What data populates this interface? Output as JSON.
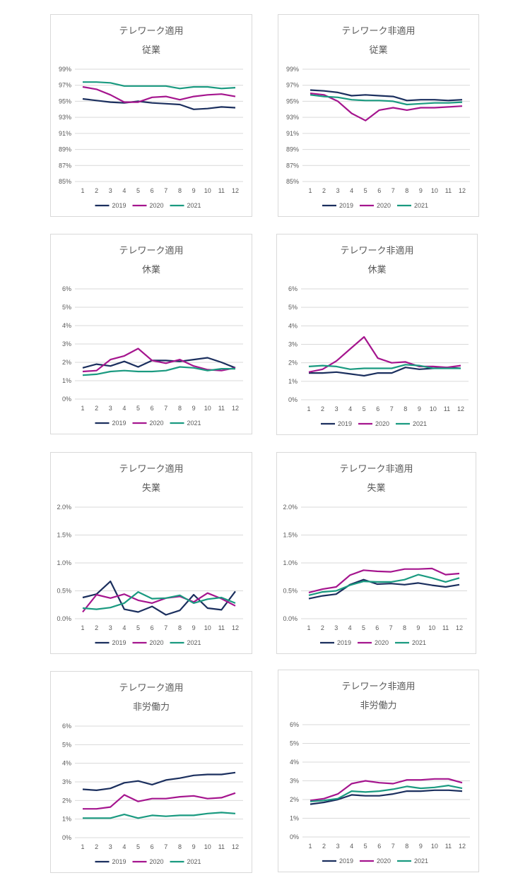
{
  "colors": {
    "2019": "#1b2f5e",
    "2020": "#a5158e",
    "2021": "#1a9a80",
    "grid": "#d9d9d9",
    "text": "#595959"
  },
  "legend": [
    "2019",
    "2020",
    "2021"
  ],
  "chart_data": [
    {
      "type": "line",
      "title": "テレワーク適用",
      "subtitle": "従業",
      "x": [
        1,
        2,
        3,
        4,
        5,
        6,
        7,
        8,
        9,
        10,
        11,
        12
      ],
      "yticks": [
        "85%",
        "87%",
        "89%",
        "91%",
        "93%",
        "95%",
        "97%",
        "99%"
      ],
      "ylim": [
        85,
        99
      ],
      "series": [
        {
          "name": "2019",
          "values": [
            95.3,
            95.1,
            94.9,
            94.8,
            95.0,
            94.8,
            94.7,
            94.6,
            94.0,
            94.1,
            94.3,
            94.2
          ]
        },
        {
          "name": "2020",
          "values": [
            96.8,
            96.5,
            95.8,
            94.9,
            94.9,
            95.5,
            95.6,
            95.2,
            95.6,
            95.8,
            95.9,
            95.6
          ]
        },
        {
          "name": "2021",
          "values": [
            97.4,
            97.4,
            97.3,
            96.9,
            96.9,
            96.9,
            96.9,
            96.6,
            96.8,
            96.8,
            96.6,
            96.7
          ]
        }
      ]
    },
    {
      "type": "line",
      "title": "テレワーク非適用",
      "subtitle": "従業",
      "x": [
        1,
        2,
        3,
        4,
        5,
        6,
        7,
        8,
        9,
        10,
        11,
        12
      ],
      "yticks": [
        "85%",
        "87%",
        "89%",
        "91%",
        "93%",
        "95%",
        "97%",
        "99%"
      ],
      "ylim": [
        85,
        99
      ],
      "series": [
        {
          "name": "2019",
          "values": [
            96.4,
            96.3,
            96.1,
            95.7,
            95.8,
            95.7,
            95.6,
            95.1,
            95.2,
            95.2,
            95.1,
            95.2
          ]
        },
        {
          "name": "2020",
          "values": [
            96.0,
            95.8,
            95.0,
            93.5,
            92.6,
            93.9,
            94.2,
            93.9,
            94.2,
            94.2,
            94.3,
            94.4
          ]
        },
        {
          "name": "2021",
          "values": [
            95.8,
            95.6,
            95.5,
            95.2,
            95.1,
            95.1,
            95.0,
            94.6,
            94.7,
            94.8,
            94.8,
            94.9
          ]
        }
      ]
    },
    {
      "type": "line",
      "title": "テレワーク適用",
      "subtitle": "休業",
      "x": [
        1,
        2,
        3,
        4,
        5,
        6,
        7,
        8,
        9,
        10,
        11,
        12
      ],
      "yticks": [
        "0%",
        "1%",
        "2%",
        "3%",
        "4%",
        "5%",
        "6%"
      ],
      "ylim": [
        0,
        6
      ],
      "series": [
        {
          "name": "2019",
          "values": [
            1.7,
            1.9,
            1.8,
            2.05,
            1.75,
            2.1,
            2.1,
            2.05,
            2.15,
            2.25,
            2.0,
            1.7
          ]
        },
        {
          "name": "2020",
          "values": [
            1.5,
            1.55,
            2.15,
            2.35,
            2.75,
            2.1,
            1.95,
            2.15,
            1.8,
            1.6,
            1.55,
            1.7
          ]
        },
        {
          "name": "2021",
          "values": [
            1.3,
            1.35,
            1.5,
            1.55,
            1.5,
            1.5,
            1.55,
            1.75,
            1.7,
            1.55,
            1.65,
            1.65
          ]
        }
      ]
    },
    {
      "type": "line",
      "title": "テレワーク非適用",
      "subtitle": "休業",
      "x": [
        1,
        2,
        3,
        4,
        5,
        6,
        7,
        8,
        9,
        10,
        11,
        12
      ],
      "yticks": [
        "0%",
        "1%",
        "2%",
        "3%",
        "4%",
        "5%",
        "6%"
      ],
      "ylim": [
        0,
        6
      ],
      "series": [
        {
          "name": "2019",
          "values": [
            1.45,
            1.45,
            1.5,
            1.4,
            1.3,
            1.45,
            1.45,
            1.75,
            1.65,
            1.7,
            1.75,
            1.7
          ]
        },
        {
          "name": "2020",
          "values": [
            1.5,
            1.65,
            2.1,
            2.75,
            3.4,
            2.25,
            2.0,
            2.05,
            1.8,
            1.8,
            1.75,
            1.85
          ]
        },
        {
          "name": "2021",
          "values": [
            1.8,
            1.85,
            1.8,
            1.65,
            1.7,
            1.7,
            1.7,
            1.9,
            1.85,
            1.7,
            1.7,
            1.7
          ]
        }
      ]
    },
    {
      "type": "line",
      "title": "テレワーク適用",
      "subtitle": "失業",
      "x": [
        1,
        2,
        3,
        4,
        5,
        6,
        7,
        8,
        9,
        10,
        11,
        12
      ],
      "yticks": [
        "0.0%",
        "0.5%",
        "1.0%",
        "1.5%",
        "2.0%"
      ],
      "ylim": [
        0,
        2.0
      ],
      "series": [
        {
          "name": "2019",
          "values": [
            0.38,
            0.44,
            0.67,
            0.17,
            0.12,
            0.22,
            0.07,
            0.15,
            0.43,
            0.19,
            0.16,
            0.49
          ]
        },
        {
          "name": "2020",
          "values": [
            0.12,
            0.43,
            0.37,
            0.44,
            0.33,
            0.28,
            0.37,
            0.4,
            0.3,
            0.46,
            0.36,
            0.23
          ]
        },
        {
          "name": "2021",
          "values": [
            0.19,
            0.17,
            0.2,
            0.28,
            0.48,
            0.36,
            0.37,
            0.42,
            0.28,
            0.35,
            0.38,
            0.28
          ]
        }
      ]
    },
    {
      "type": "line",
      "title": "テレワーク非適用",
      "subtitle": "失業",
      "x": [
        1,
        2,
        3,
        4,
        5,
        6,
        7,
        8,
        9,
        10,
        11,
        12
      ],
      "yticks": [
        "0.0%",
        "0.5%",
        "1.0%",
        "1.5%",
        "2.0%"
      ],
      "ylim": [
        0,
        2.0
      ],
      "series": [
        {
          "name": "2019",
          "values": [
            0.36,
            0.41,
            0.44,
            0.61,
            0.7,
            0.62,
            0.63,
            0.61,
            0.64,
            0.6,
            0.57,
            0.61
          ]
        },
        {
          "name": "2020",
          "values": [
            0.47,
            0.53,
            0.57,
            0.78,
            0.87,
            0.85,
            0.84,
            0.89,
            0.89,
            0.9,
            0.79,
            0.81
          ]
        },
        {
          "name": "2021",
          "values": [
            0.42,
            0.48,
            0.5,
            0.6,
            0.67,
            0.66,
            0.66,
            0.7,
            0.79,
            0.73,
            0.66,
            0.73
          ]
        }
      ]
    },
    {
      "type": "line",
      "title": "テレワーク適用",
      "subtitle": "非労働力",
      "x": [
        1,
        2,
        3,
        4,
        5,
        6,
        7,
        8,
        9,
        10,
        11,
        12
      ],
      "yticks": [
        "0%",
        "1%",
        "2%",
        "3%",
        "4%",
        "5%",
        "6%"
      ],
      "ylim": [
        0,
        6
      ],
      "series": [
        {
          "name": "2019",
          "values": [
            2.6,
            2.55,
            2.65,
            2.95,
            3.05,
            2.85,
            3.1,
            3.2,
            3.35,
            3.4,
            3.4,
            3.5
          ]
        },
        {
          "name": "2020",
          "values": [
            1.55,
            1.55,
            1.65,
            2.3,
            1.95,
            2.1,
            2.1,
            2.2,
            2.25,
            2.1,
            2.15,
            2.4
          ]
        },
        {
          "name": "2021",
          "values": [
            1.05,
            1.05,
            1.05,
            1.25,
            1.05,
            1.2,
            1.15,
            1.2,
            1.2,
            1.3,
            1.35,
            1.3
          ]
        }
      ]
    },
    {
      "type": "line",
      "title": "テレワーク非適用",
      "subtitle": "非労働力",
      "x": [
        1,
        2,
        3,
        4,
        5,
        6,
        7,
        8,
        9,
        10,
        11,
        12
      ],
      "yticks": [
        "0%",
        "1%",
        "2%",
        "3%",
        "4%",
        "5%",
        "6%"
      ],
      "ylim": [
        0,
        6
      ],
      "series": [
        {
          "name": "2019",
          "values": [
            1.75,
            1.85,
            2.0,
            2.25,
            2.2,
            2.2,
            2.3,
            2.45,
            2.45,
            2.5,
            2.5,
            2.45
          ]
        },
        {
          "name": "2020",
          "values": [
            1.95,
            2.05,
            2.3,
            2.85,
            3.0,
            2.9,
            2.85,
            3.05,
            3.05,
            3.1,
            3.1,
            2.9
          ]
        },
        {
          "name": "2021",
          "values": [
            1.9,
            1.95,
            2.05,
            2.45,
            2.4,
            2.45,
            2.55,
            2.7,
            2.6,
            2.65,
            2.75,
            2.6
          ]
        }
      ]
    }
  ]
}
